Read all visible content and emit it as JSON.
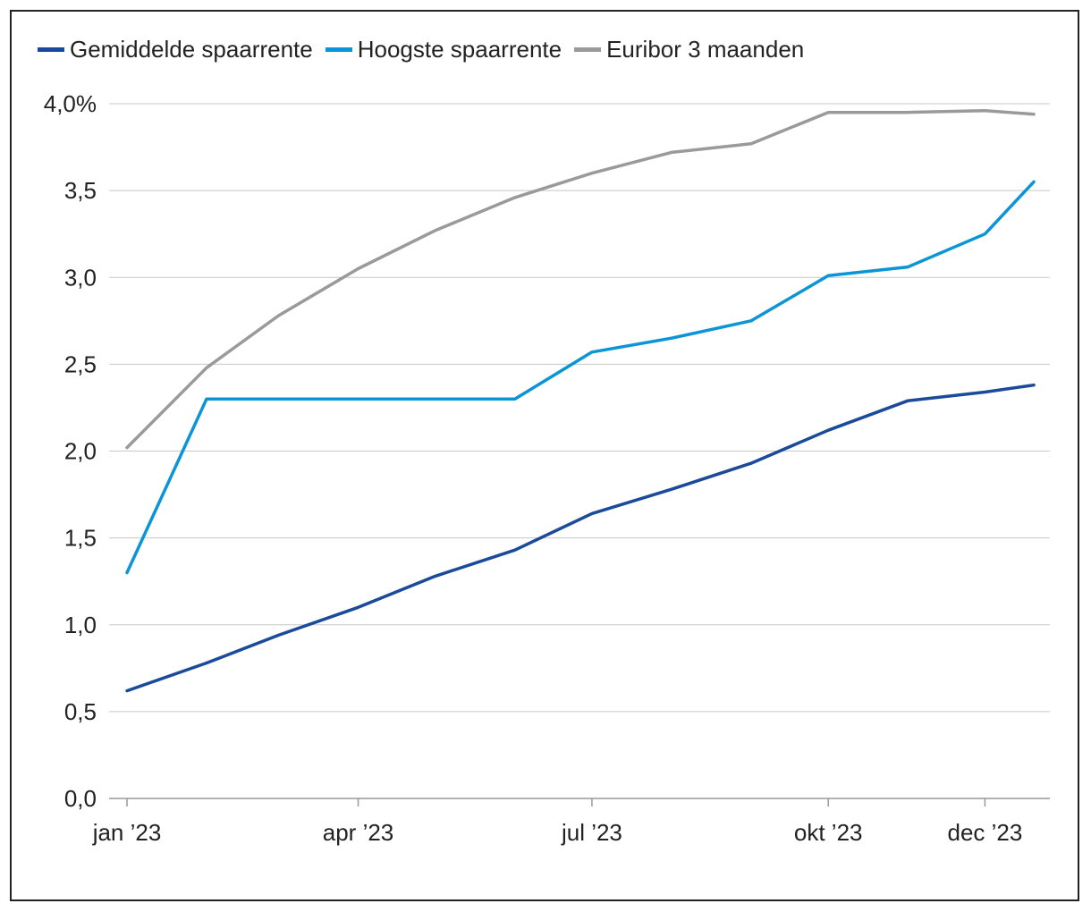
{
  "chart_data": {
    "type": "line",
    "title": "",
    "xlabel": "",
    "ylabel": "",
    "ylim": [
      0,
      4
    ],
    "y_ticks": [
      {
        "value": 0,
        "label": "0,0"
      },
      {
        "value": 0.5,
        "label": "0,5"
      },
      {
        "value": 1,
        "label": "1,0"
      },
      {
        "value": 1.5,
        "label": "1,5"
      },
      {
        "value": 2,
        "label": "2,0"
      },
      {
        "value": 2.5,
        "label": "2,5"
      },
      {
        "value": 3,
        "label": "3,0"
      },
      {
        "value": 3.5,
        "label": "3,5"
      },
      {
        "value": 4,
        "label": "4,0%"
      }
    ],
    "x": [
      "2023-01-01",
      "2023-02-01",
      "2023-03-01",
      "2023-04-01",
      "2023-05-01",
      "2023-06-01",
      "2023-07-01",
      "2023-08-01",
      "2023-09-01",
      "2023-10-01",
      "2023-11-01",
      "2023-12-01",
      "2023-12-20"
    ],
    "x_ticks": [
      {
        "value": "2023-01-01",
        "label": "jan ’23"
      },
      {
        "value": "2023-04-01",
        "label": "apr ’23"
      },
      {
        "value": "2023-07-01",
        "label": "jul ’23"
      },
      {
        "value": "2023-10-01",
        "label": "okt ’23"
      },
      {
        "value": "2023-12-01",
        "label": "dec ’23"
      }
    ],
    "grid": true,
    "legend_position": "top-left",
    "series": [
      {
        "name": "Gemiddelde spaarrente",
        "color": "#1a4a9a",
        "values": [
          0.62,
          0.78,
          0.94,
          1.1,
          1.28,
          1.43,
          1.64,
          1.78,
          1.93,
          2.12,
          2.29,
          2.34,
          2.38
        ]
      },
      {
        "name": "Hoogste spaarrente",
        "color": "#0b95d6",
        "values": [
          1.3,
          2.3,
          2.3,
          2.3,
          2.3,
          2.3,
          2.57,
          2.65,
          2.75,
          3.01,
          3.06,
          3.25,
          3.55
        ]
      },
      {
        "name": "Euribor 3 maanden",
        "color": "#9a9a9a",
        "values": [
          2.02,
          2.48,
          2.78,
          3.05,
          3.27,
          3.46,
          3.6,
          3.72,
          3.77,
          3.95,
          3.95,
          3.96,
          3.94
        ]
      }
    ]
  }
}
